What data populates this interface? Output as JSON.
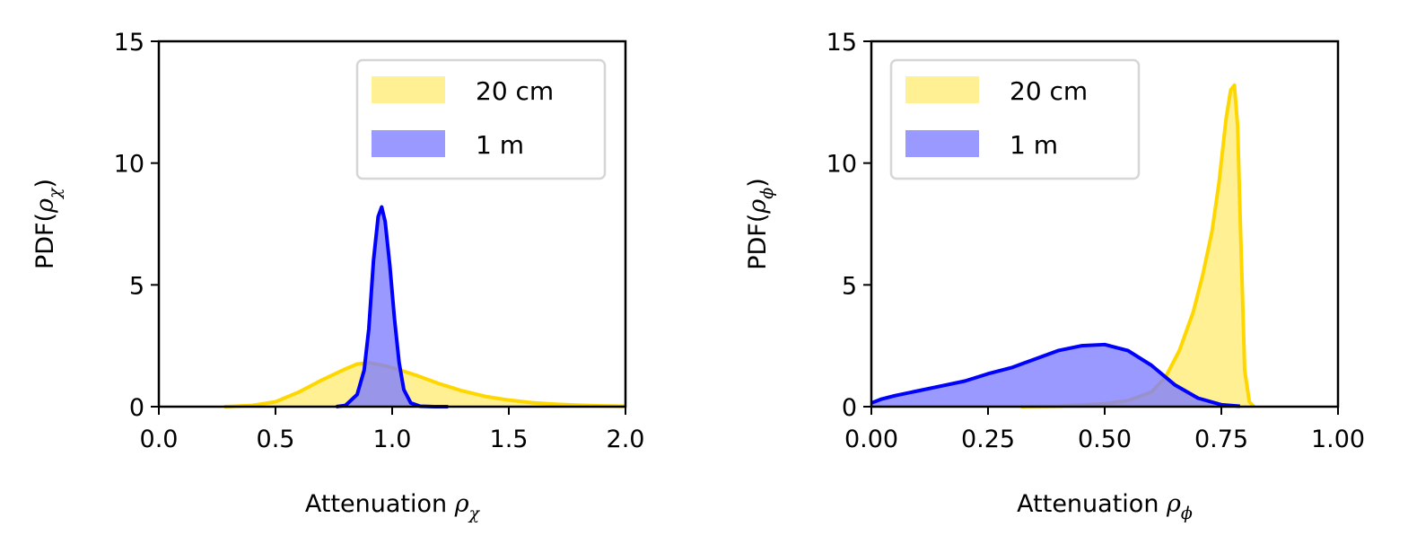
{
  "colors": {
    "yellow": "#ffd700",
    "blue": "#0000ff",
    "yellow_fill": "#ffed80",
    "blue_fill": "#8080ff"
  },
  "chart_data": [
    {
      "type": "area",
      "title": "",
      "xlabel_text": "Attenuation ",
      "xlabel_sym": "ρ",
      "xlabel_sub": "χ",
      "ylabel_text": "PDF(",
      "ylabel_sym": "ρ",
      "ylabel_sub": "χ",
      "ylabel_close": ")",
      "xlim": [
        0,
        2
      ],
      "ylim": [
        0,
        15
      ],
      "xticks": [
        0,
        0.5,
        1,
        1.5,
        2
      ],
      "xtick_labels": [
        "0.0",
        "0.5",
        "1.0",
        "1.5",
        "2.0"
      ],
      "yticks": [
        0,
        5,
        10,
        15
      ],
      "ytick_labels": [
        "0",
        "5",
        "10",
        "15"
      ],
      "legend_position": "top-right",
      "series": [
        {
          "name": "20 cm",
          "color": "yellow",
          "x": [
            0.28,
            0.4,
            0.5,
            0.6,
            0.7,
            0.8,
            0.85,
            0.9,
            0.95,
            1.0,
            1.05,
            1.1,
            1.2,
            1.3,
            1.4,
            1.5,
            1.6,
            1.7,
            1.8,
            1.9,
            2.0
          ],
          "y": [
            0.0,
            0.05,
            0.2,
            0.6,
            1.1,
            1.55,
            1.75,
            1.8,
            1.72,
            1.6,
            1.45,
            1.3,
            0.95,
            0.65,
            0.42,
            0.27,
            0.16,
            0.1,
            0.06,
            0.03,
            0.02
          ]
        },
        {
          "name": "1 m",
          "color": "blue",
          "x": [
            0.76,
            0.8,
            0.85,
            0.88,
            0.9,
            0.92,
            0.94,
            0.955,
            0.97,
            0.99,
            1.01,
            1.03,
            1.05,
            1.08,
            1.12,
            1.18,
            1.24
          ],
          "y": [
            0.0,
            0.05,
            0.5,
            1.5,
            3.2,
            6.0,
            7.8,
            8.2,
            7.6,
            5.8,
            3.6,
            1.8,
            0.7,
            0.15,
            0.02,
            0.0,
            0.0
          ]
        }
      ]
    },
    {
      "type": "area",
      "title": "",
      "xlabel_text": "Attenuation ",
      "xlabel_sym": "ρ",
      "xlabel_sub": "ϕ",
      "ylabel_text": "PDF(",
      "ylabel_sym": "ρ",
      "ylabel_sub": "ϕ",
      "ylabel_close": ")",
      "xlim": [
        0,
        1
      ],
      "ylim": [
        0,
        15
      ],
      "xticks": [
        0,
        0.25,
        0.5,
        0.75,
        1
      ],
      "xtick_labels": [
        "0.00",
        "0.25",
        "0.50",
        "0.75",
        "1.00"
      ],
      "yticks": [
        0,
        5,
        10,
        15
      ],
      "ytick_labels": [
        "0",
        "5",
        "10",
        "15"
      ],
      "legend_position": "top-left",
      "series": [
        {
          "name": "20 cm",
          "color": "yellow",
          "x": [
            0.32,
            0.4,
            0.5,
            0.55,
            0.6,
            0.63,
            0.66,
            0.69,
            0.71,
            0.73,
            0.745,
            0.76,
            0.77,
            0.778,
            0.785,
            0.79,
            0.8,
            0.81,
            0.82
          ],
          "y": [
            0.0,
            0.02,
            0.12,
            0.25,
            0.6,
            1.2,
            2.3,
            3.9,
            5.4,
            7.2,
            9.2,
            11.8,
            13.0,
            13.2,
            11.5,
            8.0,
            1.5,
            0.2,
            0.0
          ]
        },
        {
          "name": "1 m",
          "color": "blue",
          "x": [
            0.0,
            0.02,
            0.05,
            0.1,
            0.15,
            0.2,
            0.25,
            0.3,
            0.35,
            0.4,
            0.45,
            0.5,
            0.55,
            0.6,
            0.65,
            0.7,
            0.75,
            0.79
          ],
          "y": [
            0.15,
            0.3,
            0.45,
            0.65,
            0.85,
            1.05,
            1.35,
            1.6,
            1.95,
            2.3,
            2.5,
            2.55,
            2.3,
            1.7,
            0.9,
            0.35,
            0.08,
            0.02
          ]
        }
      ]
    }
  ]
}
